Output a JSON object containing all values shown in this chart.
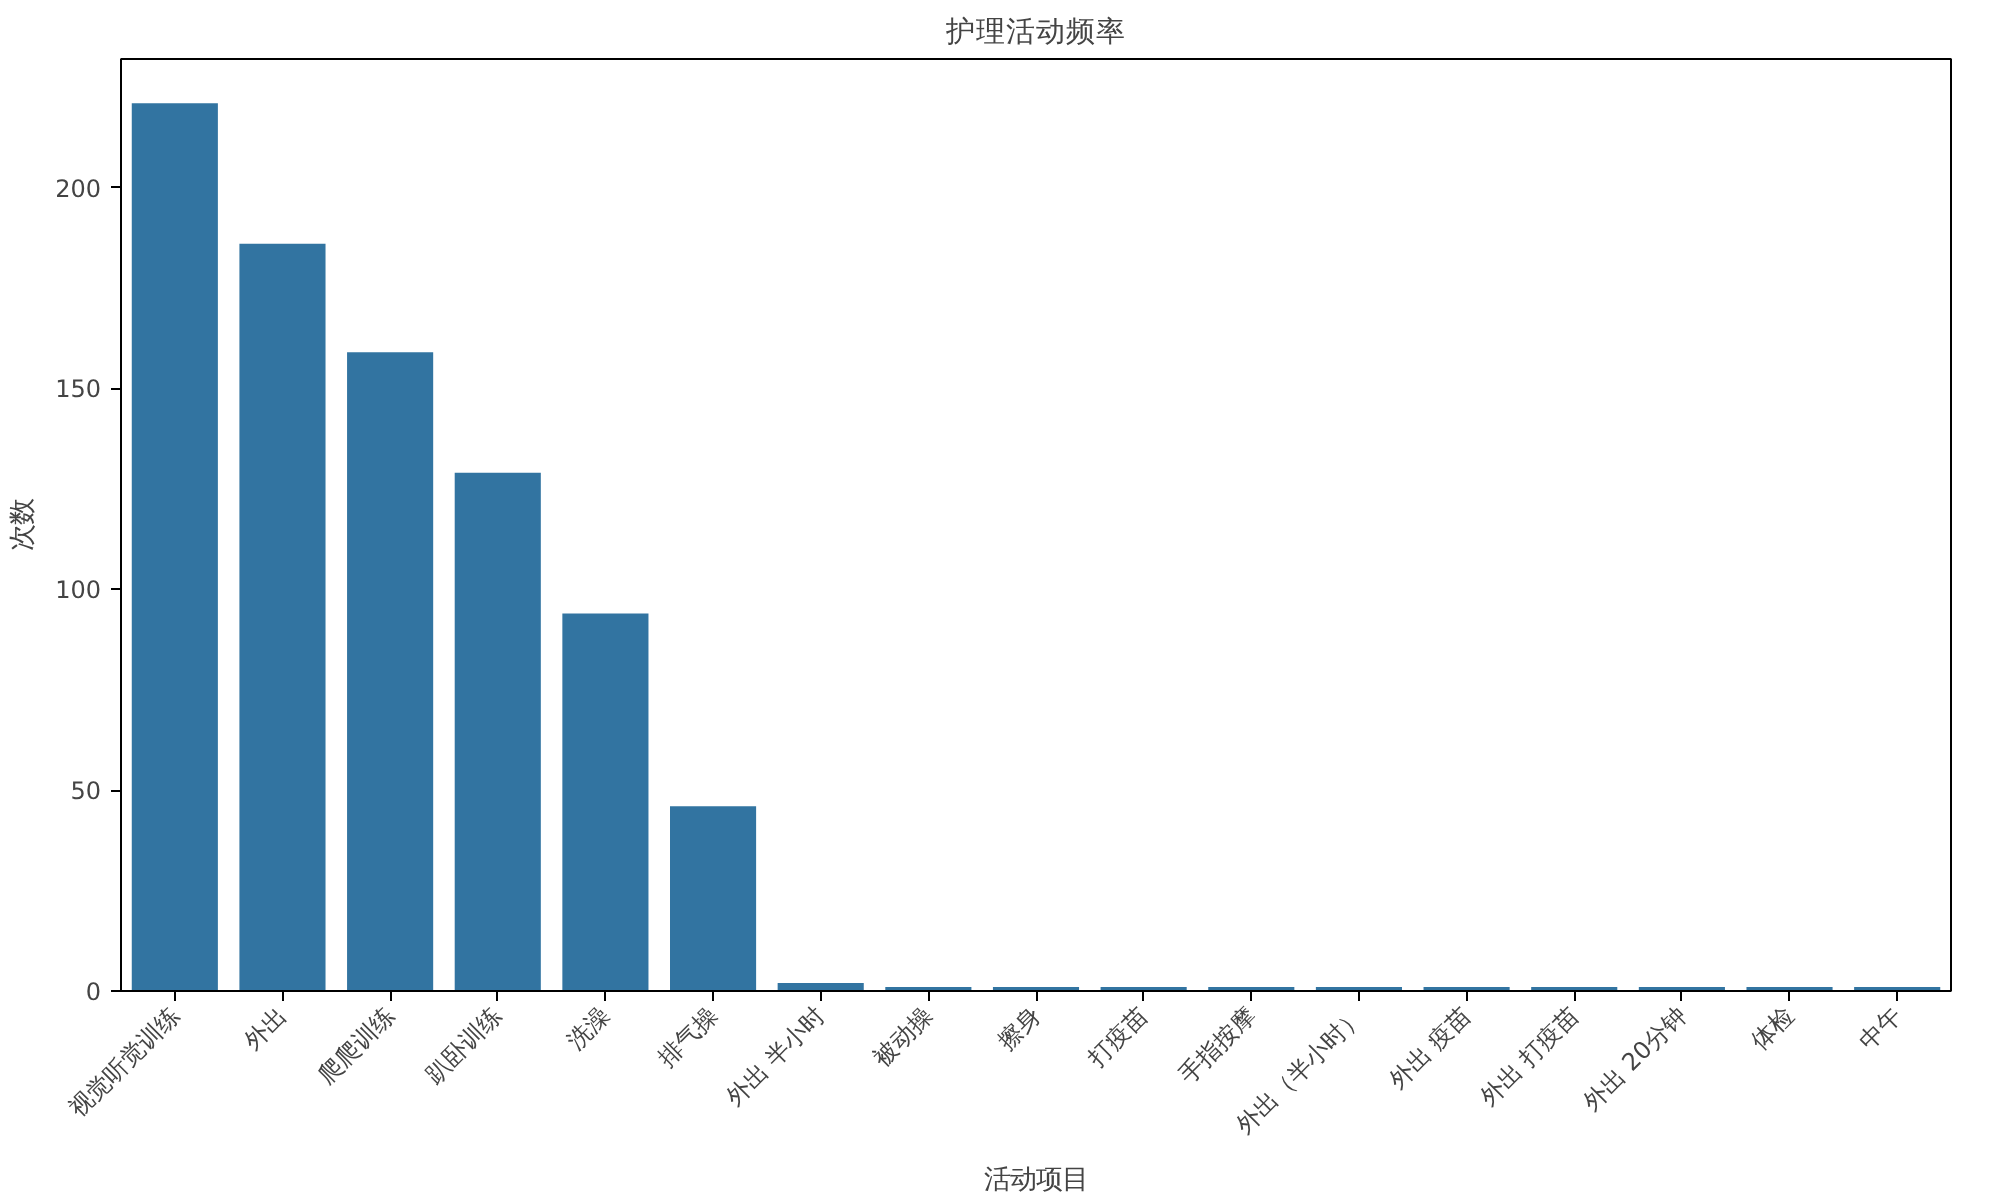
{
  "chart_data": {
    "type": "bar",
    "title": "护理活动频率",
    "xlabel": "活动项目",
    "ylabel": "次数",
    "categories": [
      "视觉听觉训练",
      "外出",
      "爬爬训练",
      "趴卧训练",
      "洗澡",
      "排气操",
      "外出 半小时",
      "被动操",
      "擦身",
      "打疫苗",
      "手指按摩",
      "外出（半小时）",
      "外出 疫苗",
      "外出 打疫苗",
      "外出 20分钟",
      "体检",
      "中午"
    ],
    "values": [
      221,
      186,
      159,
      129,
      94,
      46,
      2,
      1,
      1,
      1,
      1,
      1,
      1,
      1,
      1,
      1,
      1
    ],
    "color": "#3274a1",
    "ylim": [
      0,
      232
    ],
    "yticks": [
      0,
      50,
      100,
      150,
      200
    ],
    "grid": false
  }
}
